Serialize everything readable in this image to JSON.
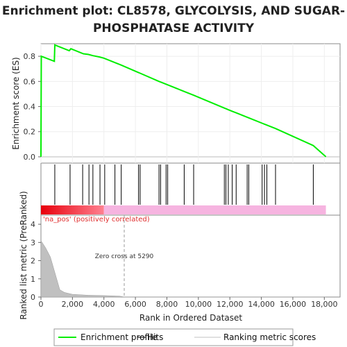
{
  "chart_data": {
    "type": "line",
    "title_line1": "Enrichment plot: CL8578, GLYCOLYSIS, AND SUGAR-",
    "title_line2": "PHOSPHATASE ACTIVITY",
    "es_ylabel": "Enrichment score (ES)",
    "metric_ylabel": "Ranked list metric (PreRanked)",
    "xlabel": "Rank in Ordered Dataset",
    "xlim": [
      0,
      19000
    ],
    "x_ticks": [
      "0",
      "2,000",
      "4,000",
      "6,000",
      "8,000",
      "10,000",
      "12,000",
      "14,000",
      "16,000",
      "18,000"
    ],
    "es_ylim": [
      -0.05,
      0.9
    ],
    "es_y_ticks": [
      "0.0",
      "0.2",
      "0.4",
      "0.6",
      "0.8"
    ],
    "metric_ylim": [
      0,
      4.5
    ],
    "metric_y_ticks": [
      "0",
      "1",
      "2",
      "3",
      "4"
    ],
    "series": [
      {
        "name": "Enrichment profile",
        "color": "#00ee00",
        "points": [
          [
            0,
            0.0
          ],
          [
            20,
            0.8
          ],
          [
            850,
            0.76
          ],
          [
            880,
            0.89
          ],
          [
            1800,
            0.845
          ],
          [
            1900,
            0.86
          ],
          [
            2700,
            0.82
          ],
          [
            3000,
            0.815
          ],
          [
            3300,
            0.805
          ],
          [
            3700,
            0.795
          ],
          [
            4000,
            0.785
          ],
          [
            4700,
            0.75
          ],
          [
            5100,
            0.73
          ],
          [
            6200,
            0.67
          ],
          [
            6300,
            0.665
          ],
          [
            7500,
            0.6
          ],
          [
            7600,
            0.595
          ],
          [
            8000,
            0.575
          ],
          [
            8100,
            0.57
          ],
          [
            9100,
            0.52
          ],
          [
            9700,
            0.49
          ],
          [
            11700,
            0.385
          ],
          [
            11800,
            0.38
          ],
          [
            11900,
            0.375
          ],
          [
            12200,
            0.36
          ],
          [
            12400,
            0.35
          ],
          [
            13100,
            0.315
          ],
          [
            13200,
            0.31
          ],
          [
            14100,
            0.265
          ],
          [
            14200,
            0.26
          ],
          [
            14300,
            0.255
          ],
          [
            14900,
            0.225
          ],
          [
            17300,
            0.09
          ],
          [
            18100,
            0.0
          ]
        ]
      }
    ],
    "hits": [
      880,
      1850,
      2650,
      3050,
      3300,
      3750,
      4050,
      4700,
      5100,
      6200,
      6300,
      7500,
      7600,
      7950,
      8050,
      9100,
      9700,
      11650,
      11750,
      11900,
      12150,
      12400,
      13100,
      13200,
      14050,
      14200,
      14350,
      14900,
      17300
    ],
    "hit_color": "#000000",
    "ranked_metric": {
      "name": "Ranking metric scores",
      "color": "#c0c0c0",
      "points": [
        [
          0,
          3.1
        ],
        [
          300,
          2.7
        ],
        [
          600,
          2.2
        ],
        [
          900,
          1.3
        ],
        [
          1200,
          0.4
        ],
        [
          1500,
          0.25
        ],
        [
          2000,
          0.15
        ],
        [
          3000,
          0.1
        ],
        [
          4000,
          0.08
        ],
        [
          5000,
          0.05
        ],
        [
          5290,
          0.0
        ],
        [
          18100,
          0.0
        ]
      ]
    },
    "zero_cross_label": "Zero cross at 5290",
    "zero_cross_x": 5290,
    "pos_label": "'na_pos' (positively correlated)",
    "gradient": {
      "red_end": 4000,
      "pink_end": 18100,
      "red_color": "#e8000b",
      "pink_color": "#f6b4e0"
    },
    "legend": [
      {
        "label": "Enrichment profile",
        "color": "#00ee00",
        "kind": "line"
      },
      {
        "label": "Hits",
        "color": "#000000",
        "kind": "line"
      },
      {
        "label": "Ranking metric scores",
        "color": "#c0c0c0",
        "kind": "line"
      }
    ]
  }
}
